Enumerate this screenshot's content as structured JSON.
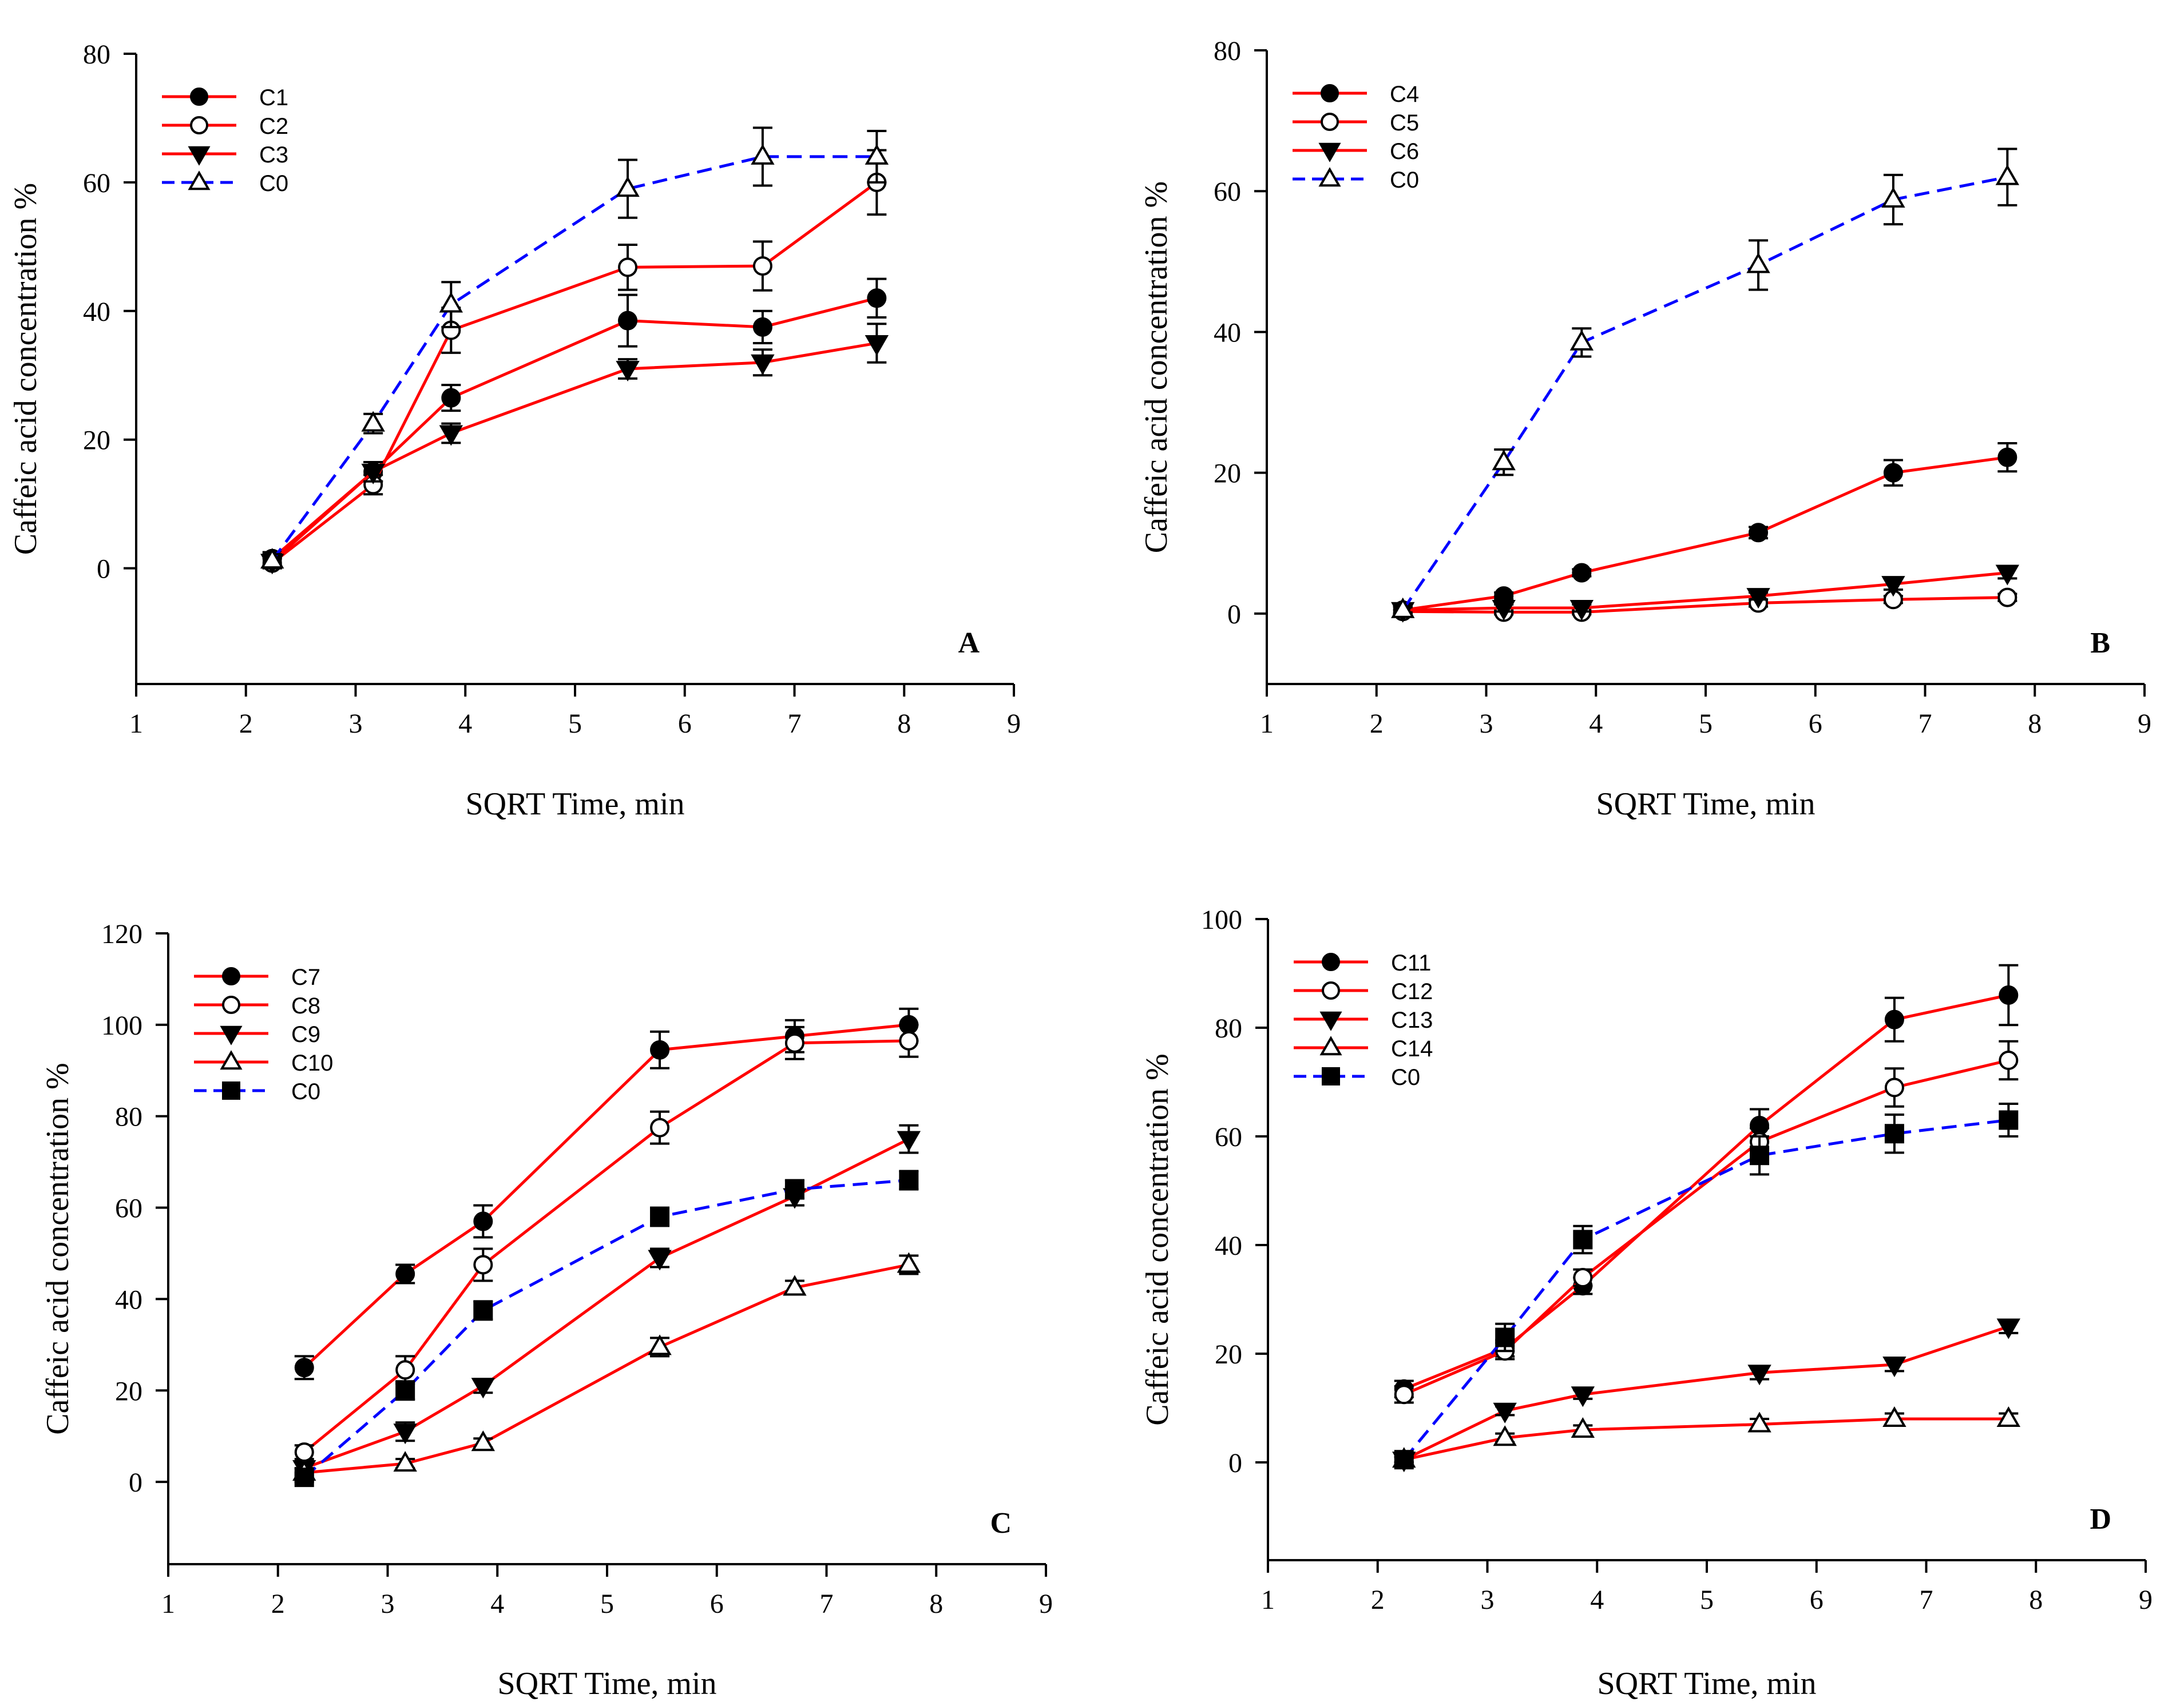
{
  "chart_data": [
    {
      "type": "line",
      "panel_label": "A",
      "xlabel": "SQRT Time, min",
      "ylabel": "Caffeic acid concentration %",
      "xlim": [
        1,
        9
      ],
      "ylim": [
        -18,
        80
      ],
      "x_ticks": [
        1,
        2,
        3,
        4,
        5,
        6,
        7,
        8,
        9
      ],
      "y_ticks": [
        0,
        20,
        40,
        60,
        80
      ],
      "x": [
        2.24,
        3.16,
        3.87,
        5.48,
        6.71,
        7.75
      ],
      "legend_position": "top-left",
      "series": [
        {
          "name": "C1",
          "marker": "filled-circle",
          "color": "#ff0000",
          "dash": false,
          "values": [
            1.5,
            15.0,
            26.5,
            38.5,
            37.5,
            42.0
          ],
          "errors": [
            1.0,
            1.5,
            2.0,
            4.0,
            2.5,
            3.0
          ]
        },
        {
          "name": "C2",
          "marker": "open-circle",
          "color": "#ff0000",
          "dash": false,
          "values": [
            0.8,
            13.0,
            37.0,
            46.8,
            47.0,
            60.0
          ],
          "errors": [
            0.8,
            1.5,
            3.5,
            3.5,
            3.8,
            5.0
          ]
        },
        {
          "name": "C3",
          "marker": "filled-triangle-down",
          "color": "#ff0000",
          "dash": false,
          "values": [
            1.0,
            15.0,
            21.0,
            31.0,
            32.0,
            35.0
          ],
          "errors": [
            1.0,
            1.5,
            1.5,
            1.5,
            2.0,
            3.0
          ]
        },
        {
          "name": "C0",
          "marker": "open-triangle-up",
          "color": "#0000ff",
          "dash": true,
          "values": [
            1.2,
            22.5,
            41.0,
            59.0,
            64.0,
            64.0
          ],
          "errors": [
            1.0,
            1.5,
            3.5,
            4.5,
            4.5,
            4.0
          ]
        }
      ]
    },
    {
      "type": "line",
      "panel_label": "B",
      "xlabel": "SQRT Time, min",
      "ylabel": "Caffeic acid concentration %",
      "xlim": [
        1,
        9
      ],
      "ylim": [
        -10,
        80
      ],
      "x_ticks": [
        1,
        2,
        3,
        4,
        5,
        6,
        7,
        8,
        9
      ],
      "y_ticks": [
        0,
        20,
        40,
        60,
        80
      ],
      "x": [
        2.24,
        3.16,
        3.87,
        5.48,
        6.71,
        7.75
      ],
      "legend_position": "top-left",
      "series": [
        {
          "name": "C4",
          "marker": "filled-circle",
          "color": "#ff0000",
          "dash": false,
          "values": [
            0.5,
            2.5,
            5.8,
            11.5,
            20.0,
            22.2
          ],
          "errors": [
            0.5,
            0.5,
            0.5,
            0.8,
            1.8,
            2.0
          ]
        },
        {
          "name": "C5",
          "marker": "open-circle",
          "color": "#ff0000",
          "dash": false,
          "values": [
            0.3,
            0.2,
            0.2,
            1.5,
            2.0,
            2.3
          ],
          "errors": [
            0.3,
            0.3,
            0.3,
            0.5,
            0.5,
            0.5
          ]
        },
        {
          "name": "C6",
          "marker": "filled-triangle-down",
          "color": "#ff0000",
          "dash": false,
          "values": [
            0.5,
            0.8,
            0.8,
            2.5,
            4.2,
            5.8
          ],
          "errors": [
            0.5,
            0.5,
            0.5,
            0.5,
            0.8,
            0.8
          ]
        },
        {
          "name": "C0",
          "marker": "open-triangle-up",
          "color": "#0000ff",
          "dash": true,
          "values": [
            0.5,
            21.5,
            38.5,
            49.5,
            58.8,
            62.0
          ],
          "errors": [
            0.5,
            1.8,
            2.0,
            3.5,
            3.5,
            4.0
          ]
        }
      ]
    },
    {
      "type": "line",
      "panel_label": "C",
      "xlabel": "SQRT Time, min",
      "ylabel": "Caffeic acid concentration %",
      "xlim": [
        1,
        9
      ],
      "ylim": [
        -18,
        120
      ],
      "x_ticks": [
        1,
        2,
        3,
        4,
        5,
        6,
        7,
        8,
        9
      ],
      "y_ticks": [
        0,
        20,
        40,
        60,
        80,
        100,
        120
      ],
      "x": [
        2.24,
        3.16,
        3.87,
        5.48,
        6.71,
        7.75
      ],
      "legend_position": "top-left",
      "series": [
        {
          "name": "C7",
          "marker": "filled-circle",
          "color": "#ff0000",
          "dash": false,
          "values": [
            25.0,
            45.5,
            57.0,
            94.5,
            97.5,
            100.0
          ],
          "errors": [
            2.5,
            2.0,
            3.5,
            4.0,
            3.5,
            3.5
          ]
        },
        {
          "name": "C8",
          "marker": "open-circle",
          "color": "#ff0000",
          "dash": false,
          "values": [
            6.5,
            24.5,
            47.5,
            77.5,
            96.0,
            96.5
          ],
          "errors": [
            1.5,
            3.0,
            3.5,
            3.5,
            3.5,
            3.5
          ]
        },
        {
          "name": "C9",
          "marker": "filled-triangle-down",
          "color": "#ff0000",
          "dash": false,
          "values": [
            3.0,
            11.0,
            21.0,
            49.0,
            62.5,
            75.0
          ],
          "errors": [
            1.5,
            2.0,
            1.5,
            2.0,
            2.0,
            3.0
          ]
        },
        {
          "name": "C10",
          "marker": "open-triangle-up",
          "color": "#ff0000",
          "dash": false,
          "values": [
            2.0,
            4.0,
            8.5,
            29.5,
            42.5,
            47.5
          ],
          "errors": [
            1.0,
            1.0,
            1.0,
            2.0,
            1.5,
            2.0
          ]
        },
        {
          "name": "C0",
          "marker": "filled-square",
          "color": "#0000ff",
          "dash": true,
          "values": [
            1.0,
            20.0,
            37.5,
            58.0,
            64.0,
            66.0
          ],
          "errors": [
            1.0,
            2.0,
            2.0,
            2.0,
            2.0,
            2.0
          ]
        }
      ]
    },
    {
      "type": "line",
      "panel_label": "D",
      "xlabel": "SQRT Time, min",
      "ylabel": "Caffeic acid concentration %",
      "xlim": [
        1,
        9
      ],
      "ylim": [
        -18,
        100
      ],
      "x_ticks": [
        1,
        2,
        3,
        4,
        5,
        6,
        7,
        8,
        9
      ],
      "y_ticks": [
        0,
        20,
        40,
        60,
        80,
        100
      ],
      "x": [
        2.24,
        3.16,
        3.87,
        5.48,
        6.71,
        7.75
      ],
      "legend_position": "top-left",
      "series": [
        {
          "name": "C11",
          "marker": "filled-circle",
          "color": "#ff0000",
          "dash": false,
          "values": [
            13.5,
            21.0,
            32.5,
            62.0,
            81.5,
            86.0
          ],
          "errors": [
            1.5,
            1.5,
            1.5,
            3.0,
            4.0,
            5.5
          ]
        },
        {
          "name": "C12",
          "marker": "open-circle",
          "color": "#ff0000",
          "dash": false,
          "values": [
            12.5,
            20.5,
            34.0,
            59.0,
            69.0,
            74.0
          ],
          "errors": [
            1.5,
            1.5,
            1.5,
            2.5,
            3.5,
            3.5
          ]
        },
        {
          "name": "C13",
          "marker": "filled-triangle-down",
          "color": "#ff0000",
          "dash": false,
          "values": [
            0.5,
            9.5,
            12.5,
            16.5,
            18.0,
            25.0
          ],
          "errors": [
            0.5,
            0.8,
            0.8,
            1.2,
            1.2,
            1.2
          ]
        },
        {
          "name": "C14",
          "marker": "open-triangle-up",
          "color": "#ff0000",
          "dash": false,
          "values": [
            0.5,
            4.5,
            6.0,
            7.0,
            8.0,
            8.0
          ],
          "errors": [
            0.5,
            0.8,
            0.8,
            1.0,
            1.0,
            1.0
          ]
        },
        {
          "name": "C0",
          "marker": "filled-square",
          "color": "#0000ff",
          "dash": true,
          "values": [
            0.5,
            23.0,
            41.0,
            56.5,
            60.5,
            63.0
          ],
          "errors": [
            0.5,
            2.5,
            2.5,
            3.5,
            3.5,
            3.0
          ]
        }
      ]
    }
  ]
}
